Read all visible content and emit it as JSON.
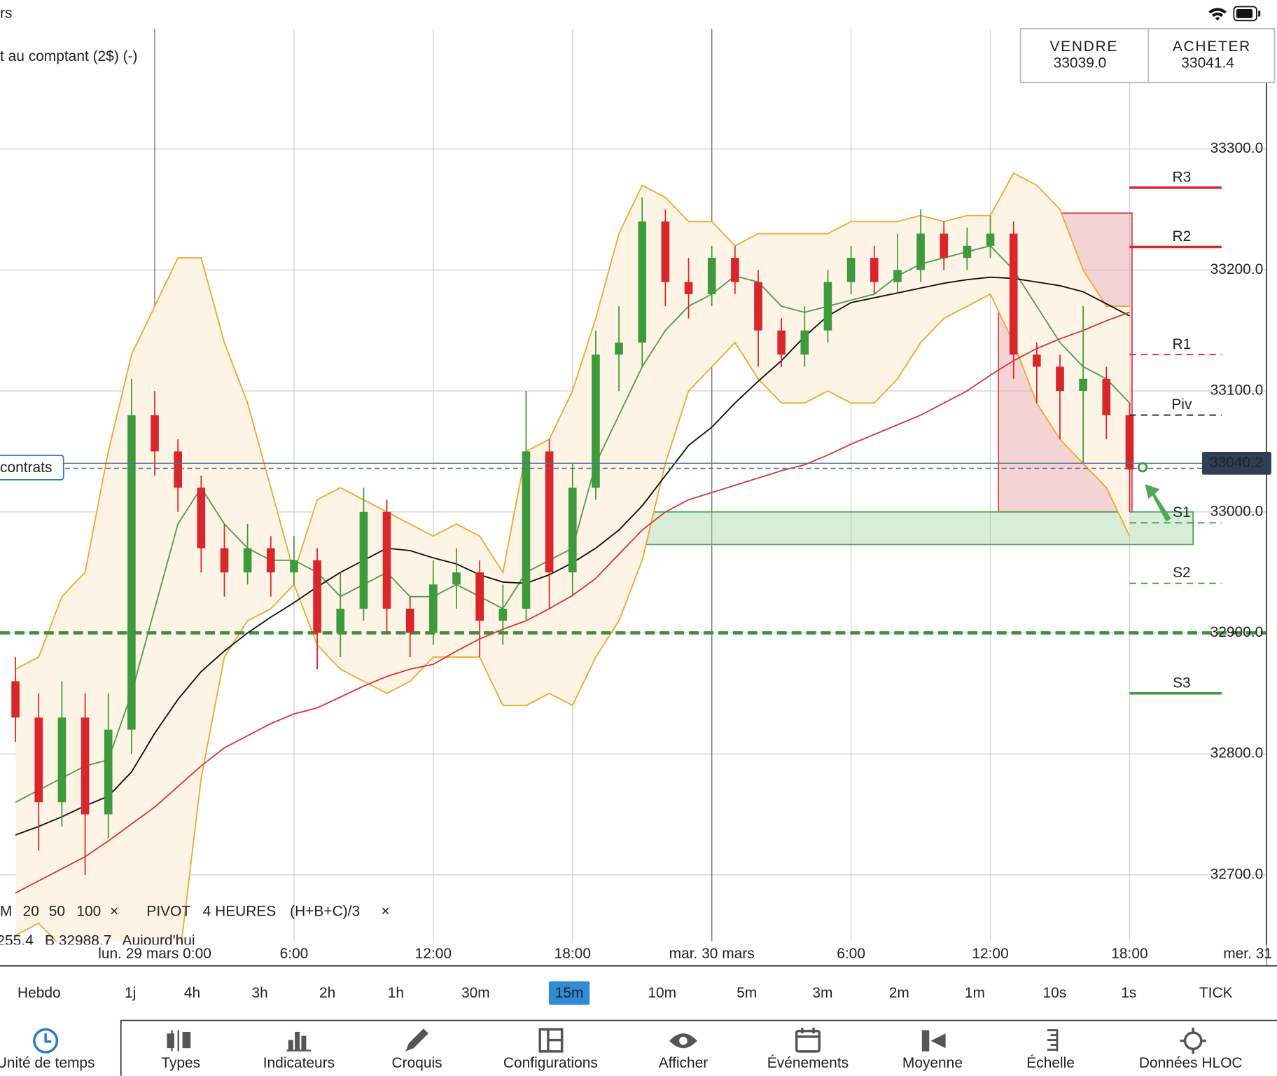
{
  "status_bar": {
    "app_title": "rs"
  },
  "instrument": "t au comptant (2$) (-)",
  "trade_panel": {
    "sell_label": "VENDRE",
    "sell_price": "33039.0",
    "buy_label": "ACHETER",
    "buy_price": "33041.4"
  },
  "chart_data": {
    "type": "candlestick",
    "categories": [
      null,
      null,
      null,
      null,
      null,
      null,
      "lun. 29 mars 0:00",
      null,
      null,
      null,
      null,
      null,
      "6:00",
      null,
      null,
      null,
      null,
      null,
      "12:00",
      null,
      null,
      null,
      null,
      null,
      "18:00",
      null,
      null,
      null,
      null,
      null,
      "mar. 30 mars",
      null,
      null,
      null,
      null,
      null,
      "6:00",
      null,
      null,
      null,
      null,
      null,
      "12:00",
      null,
      null,
      null,
      null,
      null,
      "18:00",
      null,
      null,
      null,
      null,
      null,
      "mer. 31"
    ],
    "open": [
      32860,
      32830,
      32760,
      32830,
      32750,
      32820,
      33080,
      33050,
      33020,
      32970,
      32950,
      32970,
      32950,
      32960,
      32900,
      32920,
      33000,
      32920,
      32900,
      32940,
      32950,
      32910,
      32920,
      33050,
      32950,
      33020,
      33130,
      33140,
      33240,
      33190,
      33180,
      33210,
      33190,
      33150,
      33130,
      33150,
      33190,
      33210,
      33190,
      33200,
      33230,
      33210,
      33220,
      33230,
      33130,
      33120,
      33100,
      33110,
      33080,
      null,
      null,
      null,
      null,
      null,
      null
    ],
    "high": [
      32880,
      32850,
      32860,
      32850,
      32850,
      33110,
      33100,
      33060,
      33030,
      32990,
      32990,
      32980,
      32980,
      32970,
      32950,
      33020,
      33010,
      32930,
      32960,
      32970,
      32960,
      32940,
      33100,
      33060,
      33040,
      33150,
      33170,
      33260,
      33250,
      33210,
      33220,
      33220,
      33200,
      33160,
      33170,
      33200,
      33220,
      33220,
      33230,
      33250,
      33240,
      33235,
      33245,
      33240,
      33140,
      33130,
      33170,
      33120,
      33090,
      null,
      null,
      null,
      null,
      null,
      null
    ],
    "low": [
      32810,
      32720,
      32740,
      32700,
      32730,
      32800,
      33030,
      33000,
      32950,
      32930,
      32940,
      32930,
      32940,
      32870,
      32880,
      32910,
      32900,
      32880,
      32890,
      32920,
      32880,
      32890,
      32910,
      32920,
      32930,
      33010,
      33100,
      33120,
      33170,
      33160,
      33170,
      33180,
      33120,
      33120,
      33120,
      33140,
      33180,
      33180,
      33180,
      33190,
      33200,
      33200,
      33210,
      33110,
      33090,
      33060,
      33040,
      33060,
      33000,
      null,
      null,
      null,
      null,
      null,
      null
    ],
    "close": [
      32830,
      32760,
      32830,
      32750,
      32820,
      33080,
      33050,
      33020,
      32970,
      32950,
      32970,
      32950,
      32960,
      32900,
      32920,
      33000,
      32920,
      32900,
      32940,
      32950,
      32910,
      32920,
      33050,
      32950,
      33020,
      33130,
      33140,
      33240,
      33190,
      33180,
      33210,
      33190,
      33150,
      33130,
      33150,
      33190,
      33210,
      33190,
      33200,
      33230,
      33210,
      33220,
      33230,
      33130,
      33120,
      33100,
      33110,
      33080,
      33035,
      null,
      null,
      null,
      null,
      null,
      null
    ],
    "up_color": "#3d9a3d",
    "down_color": "#d8262c",
    "ylim": [
      32645,
      33423
    ],
    "yticks": [
      {
        "value": 32700,
        "label": "32700.0"
      },
      {
        "value": 32800,
        "label": "32800.0"
      },
      {
        "value": 32900,
        "label": "32900.0"
      },
      {
        "value": 33000,
        "label": "33000.0"
      },
      {
        "value": 33100,
        "label": "33100.0"
      },
      {
        "value": 33200,
        "label": "33200.0"
      },
      {
        "value": 33300,
        "label": "33300.0"
      }
    ],
    "grid": true,
    "moving_averages": [
      {
        "name": "20",
        "color": "#4f9e55",
        "values": [
          32760,
          32770,
          32780,
          32790,
          32795,
          32850,
          32920,
          32990,
          33020,
          32990,
          32970,
          32960,
          32960,
          32950,
          32930,
          32940,
          32950,
          32930,
          32930,
          32940,
          32930,
          32920,
          32950,
          32960,
          32970,
          33040,
          33080,
          33120,
          33150,
          33170,
          33180,
          33195,
          33190,
          33170,
          33165,
          33170,
          33175,
          33180,
          33195,
          33205,
          33210,
          33215,
          33220,
          33200,
          33170,
          33140,
          33120,
          33110,
          33090,
          null,
          null,
          null,
          null,
          null,
          null
        ]
      },
      {
        "name": "50",
        "color": "#111111",
        "values": [
          32733,
          32740,
          32748,
          32757,
          32765,
          32785,
          32817,
          32845,
          32868,
          32885,
          32900,
          32913,
          32925,
          32938,
          32950,
          32960,
          32970,
          32968,
          32962,
          32957,
          32948,
          32942,
          32941,
          32948,
          32958,
          32970,
          32985,
          33005,
          33030,
          33055,
          33070,
          33090,
          33108,
          33125,
          33145,
          33162,
          33173,
          33177,
          33181,
          33185,
          33189,
          33192,
          33194,
          33193,
          33190,
          33187,
          33182,
          33172,
          33162,
          null,
          null,
          null,
          null,
          null,
          null
        ]
      },
      {
        "name": "100",
        "color": "#d23a3a",
        "values": [
          32685,
          32695,
          32705,
          32715,
          32728,
          32742,
          32756,
          32773,
          32790,
          32805,
          32815,
          32825,
          32833,
          32838,
          32847,
          32856,
          32864,
          32870,
          32874,
          32885,
          32895,
          32903,
          32910,
          32920,
          32931,
          32945,
          32965,
          32985,
          33000,
          33010,
          33016,
          33022,
          33028,
          33034,
          33039,
          33047,
          33056,
          33064,
          33072,
          33080,
          33090,
          33100,
          33113,
          33125,
          33135,
          33143,
          33150,
          33158,
          33165,
          null,
          null,
          null,
          null,
          null,
          null
        ]
      }
    ],
    "bollinger": {
      "color": "#f0a92e",
      "fill": "#fdf4e6",
      "upper": [
        32870,
        32880,
        32930,
        32950,
        33050,
        33130,
        33170,
        33210,
        33210,
        33140,
        33090,
        33020,
        32950,
        33010,
        33020,
        33010,
        33000,
        32990,
        32980,
        32990,
        32980,
        32950,
        33050,
        33060,
        33100,
        33160,
        33230,
        33270,
        33260,
        33240,
        33240,
        33220,
        33230,
        33230,
        33230,
        33230,
        33240,
        33240,
        33240,
        33245,
        33240,
        33245,
        33245,
        33280,
        33270,
        33250,
        33200,
        33170,
        33170,
        null,
        null,
        null,
        null,
        null,
        null
      ],
      "lower": [
        32650,
        32660,
        32640,
        32630,
        32600,
        32550,
        32560,
        32620,
        32780,
        32880,
        32910,
        32920,
        32940,
        32890,
        32870,
        32860,
        32850,
        32860,
        32880,
        32880,
        32880,
        32840,
        32840,
        32850,
        32840,
        32880,
        32910,
        32960,
        33040,
        33100,
        33120,
        33140,
        33110,
        33090,
        33090,
        33100,
        33090,
        33090,
        33110,
        33140,
        33160,
        33170,
        33180,
        33140,
        33090,
        33060,
        33040,
        33020,
        32980,
        null,
        null,
        null,
        null,
        null,
        null
      ]
    },
    "pivots": [
      {
        "name": "R3",
        "value": 33268,
        "color": "#d8262c",
        "dashed": false
      },
      {
        "name": "R2",
        "value": 33219,
        "color": "#d8262c",
        "dashed": false
      },
      {
        "name": "R1",
        "value": 33130,
        "color": "#d8262c",
        "dashed": true
      },
      {
        "name": "Piv",
        "value": 33080,
        "color": "#222222",
        "dashed": true
      },
      {
        "name": "S1",
        "value": 32991,
        "color": "#3d9a3d",
        "dashed": true
      },
      {
        "name": "S2",
        "value": 32941,
        "color": "#3d9a3d",
        "dashed": true
      },
      {
        "name": "S3",
        "value": 32850,
        "color": "#3d9a3d",
        "dashed": false
      }
    ],
    "support_line": {
      "value": 32900,
      "color": "#3f8f3f"
    },
    "current_price": 33040.2,
    "position": {
      "value": 33036,
      "label": "contrats"
    },
    "zones": [
      {
        "ylim": [
          33000,
          33247
        ],
        "color": "#e79ea1",
        "border": "#c9484c"
      },
      {
        "ylim": [
          32973,
          33000
        ],
        "color": "#a8d8a8",
        "border": "#4f9e55"
      }
    ]
  },
  "legend": {
    "ma_prefix": "M",
    "close_icon": "×",
    "pivot_label": "PIVOT",
    "pivot_period": "4 HEURES",
    "pivot_formula": "(H+B+C)/3",
    "ohlc": [
      "255.4",
      "B 32988.7",
      "Aujourd'hui"
    ]
  },
  "timeframes": {
    "items": [
      "Hebdo",
      "1j",
      "4h",
      "3h",
      "2h",
      "1h",
      "30m",
      "15m",
      "10m",
      "5m",
      "3m",
      "2m",
      "1m",
      "10s",
      "1s",
      "TICK"
    ],
    "selected": 7
  },
  "toolbar": {
    "items": [
      "Unité de temps",
      "Types",
      "Indicateurs",
      "Croquis",
      "Configurations",
      "Afficher",
      "Événements",
      "Moyenne",
      "Échelle",
      "Données HLOC"
    ],
    "active": 0
  }
}
